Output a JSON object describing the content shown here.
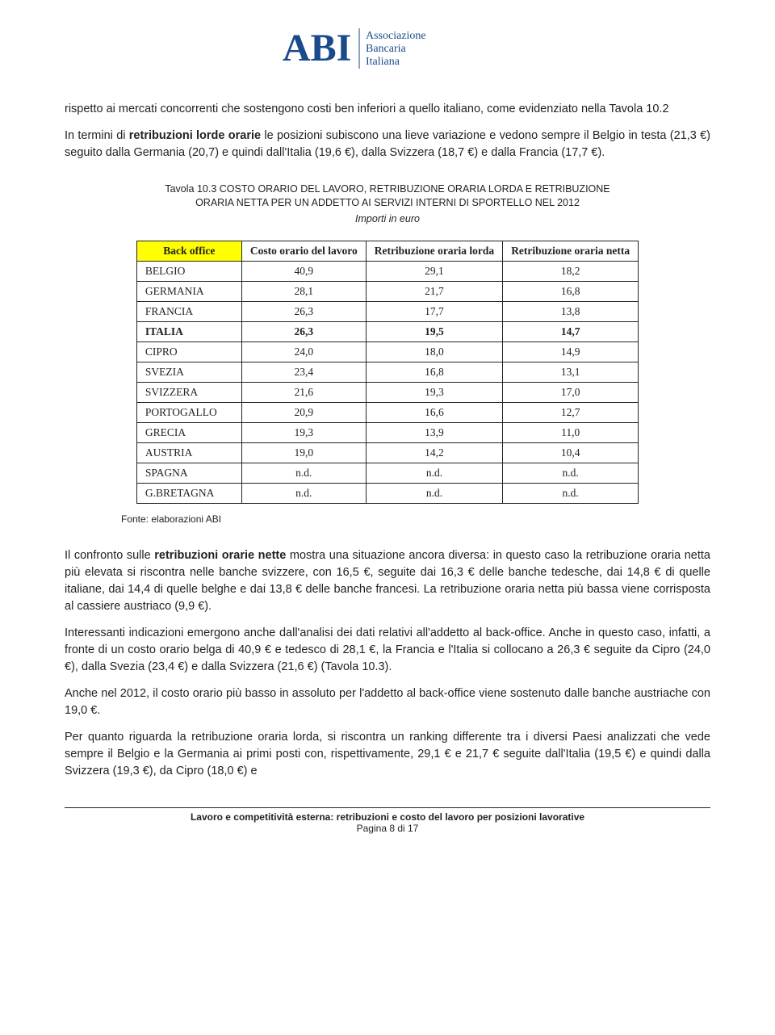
{
  "logo": {
    "abbrev": "ABI",
    "line1": "Associazione",
    "line2": "Bancaria",
    "line3": "Italiana",
    "color": "#1a4a8a"
  },
  "para1_html": "rispetto ai mercati concorrenti che sostengono costi ben inferiori a quello italiano, come evidenziato nella Tavola 10.2",
  "para2_html": "In termini di <strong>retribuzioni lorde orarie</strong> le posizioni subiscono una lieve variazione e vedono sempre il Belgio in testa (21,3 €) seguito dalla Germania (20,7) e quindi dall'Italia (19,6 €), dalla Svizzera (18,7 €) e dalla Francia (17,7 €).",
  "table_title": "Tavola 10.3 COSTO ORARIO DEL LAVORO, RETRIBUZIONE ORARIA LORDA E RETRIBUZIONE ORARIA NETTA PER UN ADDETTO AI SERVIZI INTERNI DI SPORTELLO NEL 2012",
  "table_subtitle": "Importi in euro",
  "table": {
    "corner": "Back office",
    "columns": [
      "Costo orario del lavoro",
      "Retribuzione oraria lorda",
      "Retribuzione oraria netta"
    ],
    "rows": [
      {
        "name": "BELGIO",
        "v": [
          "40,9",
          "29,1",
          "18,2"
        ],
        "bold": false
      },
      {
        "name": "GERMANIA",
        "v": [
          "28,1",
          "21,7",
          "16,8"
        ],
        "bold": false
      },
      {
        "name": "FRANCIA",
        "v": [
          "26,3",
          "17,7",
          "13,8"
        ],
        "bold": false
      },
      {
        "name": "ITALIA",
        "v": [
          "26,3",
          "19,5",
          "14,7"
        ],
        "bold": true
      },
      {
        "name": "CIPRO",
        "v": [
          "24,0",
          "18,0",
          "14,9"
        ],
        "bold": false
      },
      {
        "name": "SVEZIA",
        "v": [
          "23,4",
          "16,8",
          "13,1"
        ],
        "bold": false
      },
      {
        "name": "SVIZZERA",
        "v": [
          "21,6",
          "19,3",
          "17,0"
        ],
        "bold": false
      },
      {
        "name": "PORTOGALLO",
        "v": [
          "20,9",
          "16,6",
          "12,7"
        ],
        "bold": false
      },
      {
        "name": "GRECIA",
        "v": [
          "19,3",
          "13,9",
          "11,0"
        ],
        "bold": false
      },
      {
        "name": "AUSTRIA",
        "v": [
          "19,0",
          "14,2",
          "10,4"
        ],
        "bold": false
      },
      {
        "name": "SPAGNA",
        "v": [
          "n.d.",
          "n.d.",
          "n.d."
        ],
        "bold": false
      },
      {
        "name": "G.BRETAGNA",
        "v": [
          "n.d.",
          "n.d.",
          "n.d."
        ],
        "bold": false
      }
    ],
    "highlight_color": "#ffff00",
    "border_color": "#222222"
  },
  "source": "Fonte: elaborazioni ABI",
  "para3_html": "Il confronto sulle <strong>retribuzioni orarie nette</strong> mostra una situazione ancora diversa: in questo caso la retribuzione oraria netta più elevata si riscontra nelle banche svizzere, con 16,5 €, seguite dai 16,3 € delle banche tedesche, dai 14,8 € di quelle italiane, dai 14,4 di quelle belghe e dai 13,8 € delle banche francesi. La retribuzione oraria netta più bassa viene corrisposta al cassiere austriaco (9,9 €).",
  "para4_html": "Interessanti indicazioni emergono anche dall'analisi dei dati relativi all'addetto al back-office. Anche in questo caso, infatti, a fronte di un costo orario belga di 40,9 € e tedesco di 28,1 €, la Francia e l'Italia si collocano a 26,3 € seguite da Cipro (24,0 €), dalla Svezia (23,4 €) e dalla Svizzera (21,6 €) (Tavola 10.3).",
  "para5_html": "Anche nel 2012, il costo orario più basso in assoluto per l'addetto al back-office viene sostenuto dalle banche austriache con 19,0 €.",
  "para6_html": "Per quanto riguarda la retribuzione oraria lorda, si riscontra un ranking differente tra i diversi Paesi analizzati che vede sempre il Belgio e la Germania ai primi posti con, rispettivamente, 29,1 € e 21,7 € seguite dall'Italia (19,5 €) e quindi dalla Svizzera (19,3 €), da Cipro (18,0 €) e",
  "footer": {
    "title": "Lavoro e competitività esterna: retribuzioni e costo del lavoro per posizioni lavorative",
    "page": "Pagina 8 di 17"
  }
}
